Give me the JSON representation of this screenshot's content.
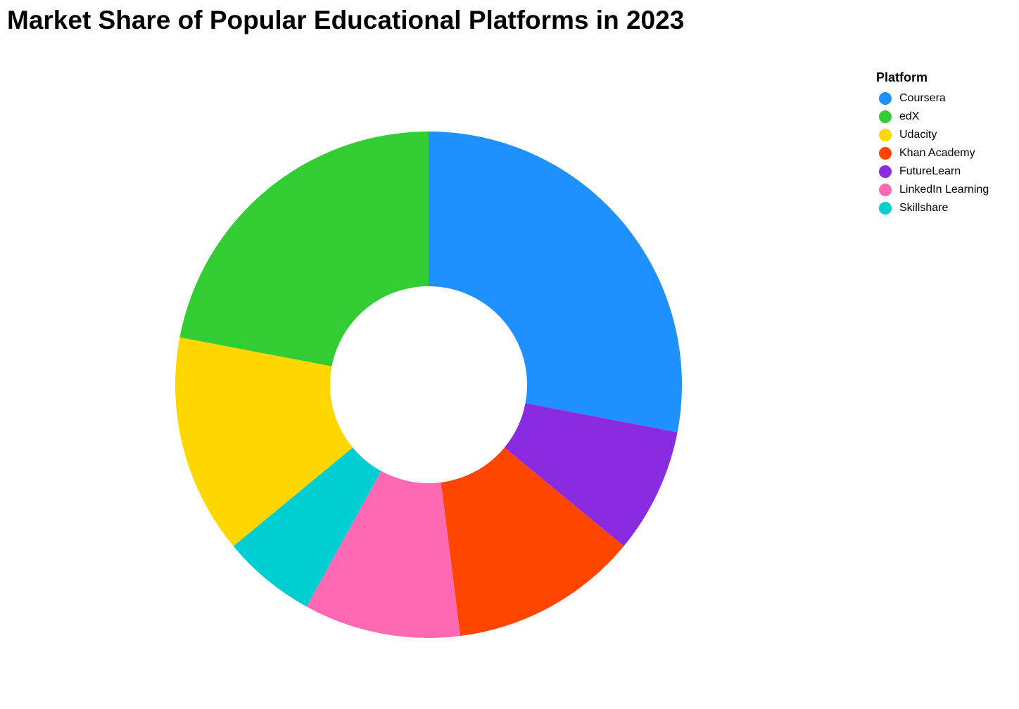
{
  "chart_data": {
    "type": "pie",
    "donut": true,
    "title": "Market Share of Popular Educational Platforms in 2023",
    "legend": {
      "title": "Platform",
      "placement": "top-right"
    },
    "categories": [
      "Coursera",
      "edX",
      "Udacity",
      "Khan Academy",
      "FutureLearn",
      "LinkedIn Learning",
      "Skillshare"
    ],
    "values": [
      28,
      22,
      14,
      12,
      8,
      10,
      6
    ],
    "colors": [
      "#1E90FF",
      "#32CD32",
      "#FFD700",
      "#FF4500",
      "#8A2BE2",
      "#FF69B4",
      "#00CED1"
    ],
    "slice_order": [
      "Coursera",
      "FutureLearn",
      "Khan Academy",
      "LinkedIn Learning",
      "Skillshare",
      "Udacity",
      "edX"
    ]
  }
}
